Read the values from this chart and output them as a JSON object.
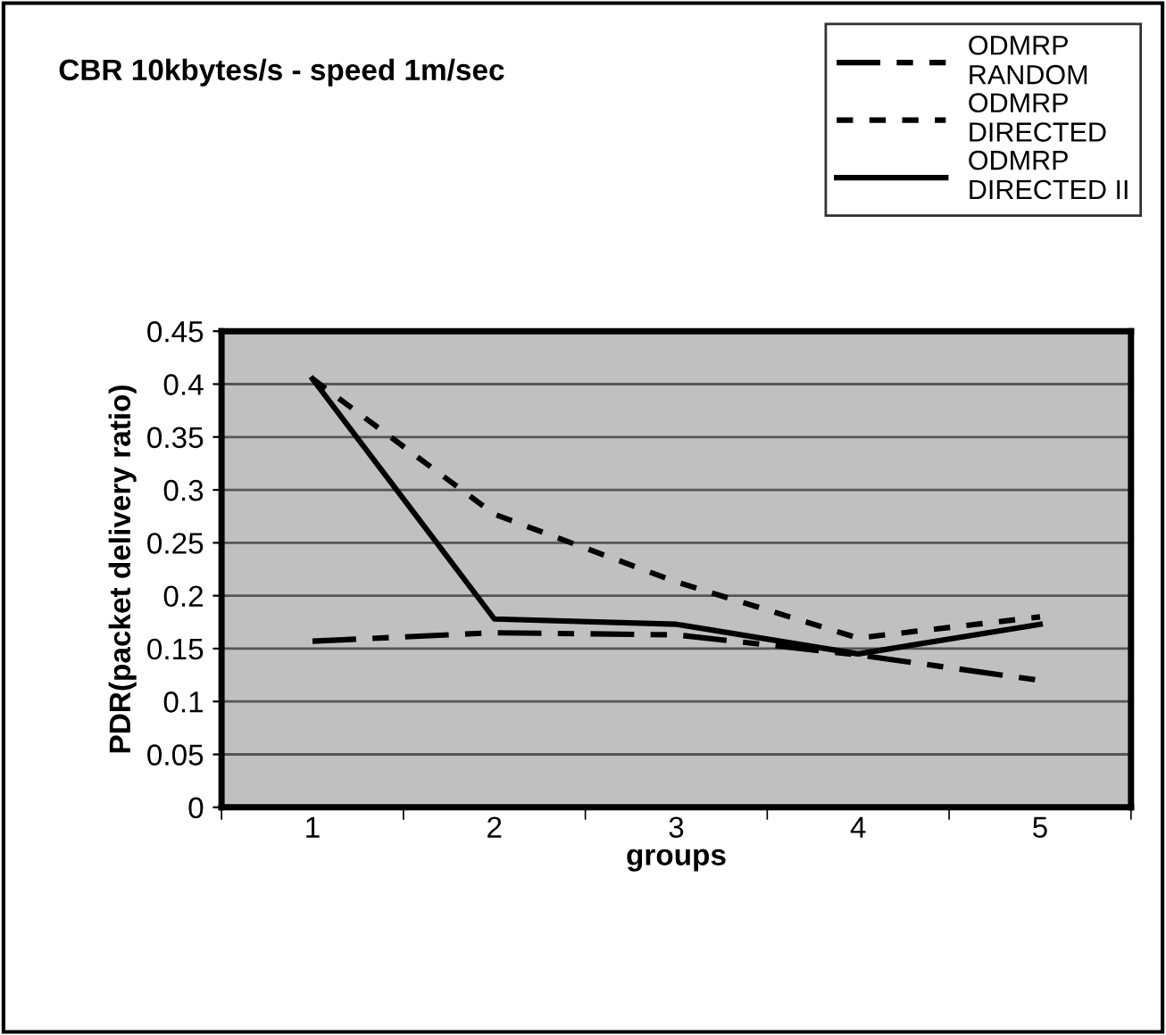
{
  "chart_data": {
    "type": "line",
    "title": "CBR 10kbytes/s - speed 1m/sec",
    "xlabel": "groups",
    "ylabel": "PDR(packet delivery ratio)",
    "categories": [
      "1",
      "2",
      "3",
      "4",
      "5"
    ],
    "series": [
      {
        "name": "ODMRP\nRANDOM",
        "color": "#000000",
        "line_style": "dashed",
        "values": [
          0.157,
          0.165,
          0.163,
          0.144,
          0.12
        ]
      },
      {
        "name": "ODMRP\nDIRECTED",
        "color": "#000000",
        "line_style": "dotted",
        "values": [
          0.405,
          0.277,
          0.213,
          0.16,
          0.18
        ]
      },
      {
        "name": "ODMRP\nDIRECTED II",
        "color": "#000000",
        "line_style": "solid",
        "values": [
          0.405,
          0.178,
          0.173,
          0.145,
          0.173
        ]
      }
    ],
    "ylim": [
      0,
      0.45
    ],
    "yticks": [
      0,
      0.05,
      0.1,
      0.15,
      0.2,
      0.25,
      0.3,
      0.35,
      0.4,
      0.45
    ],
    "grid": "y",
    "legend": "top right",
    "marker": "none"
  }
}
